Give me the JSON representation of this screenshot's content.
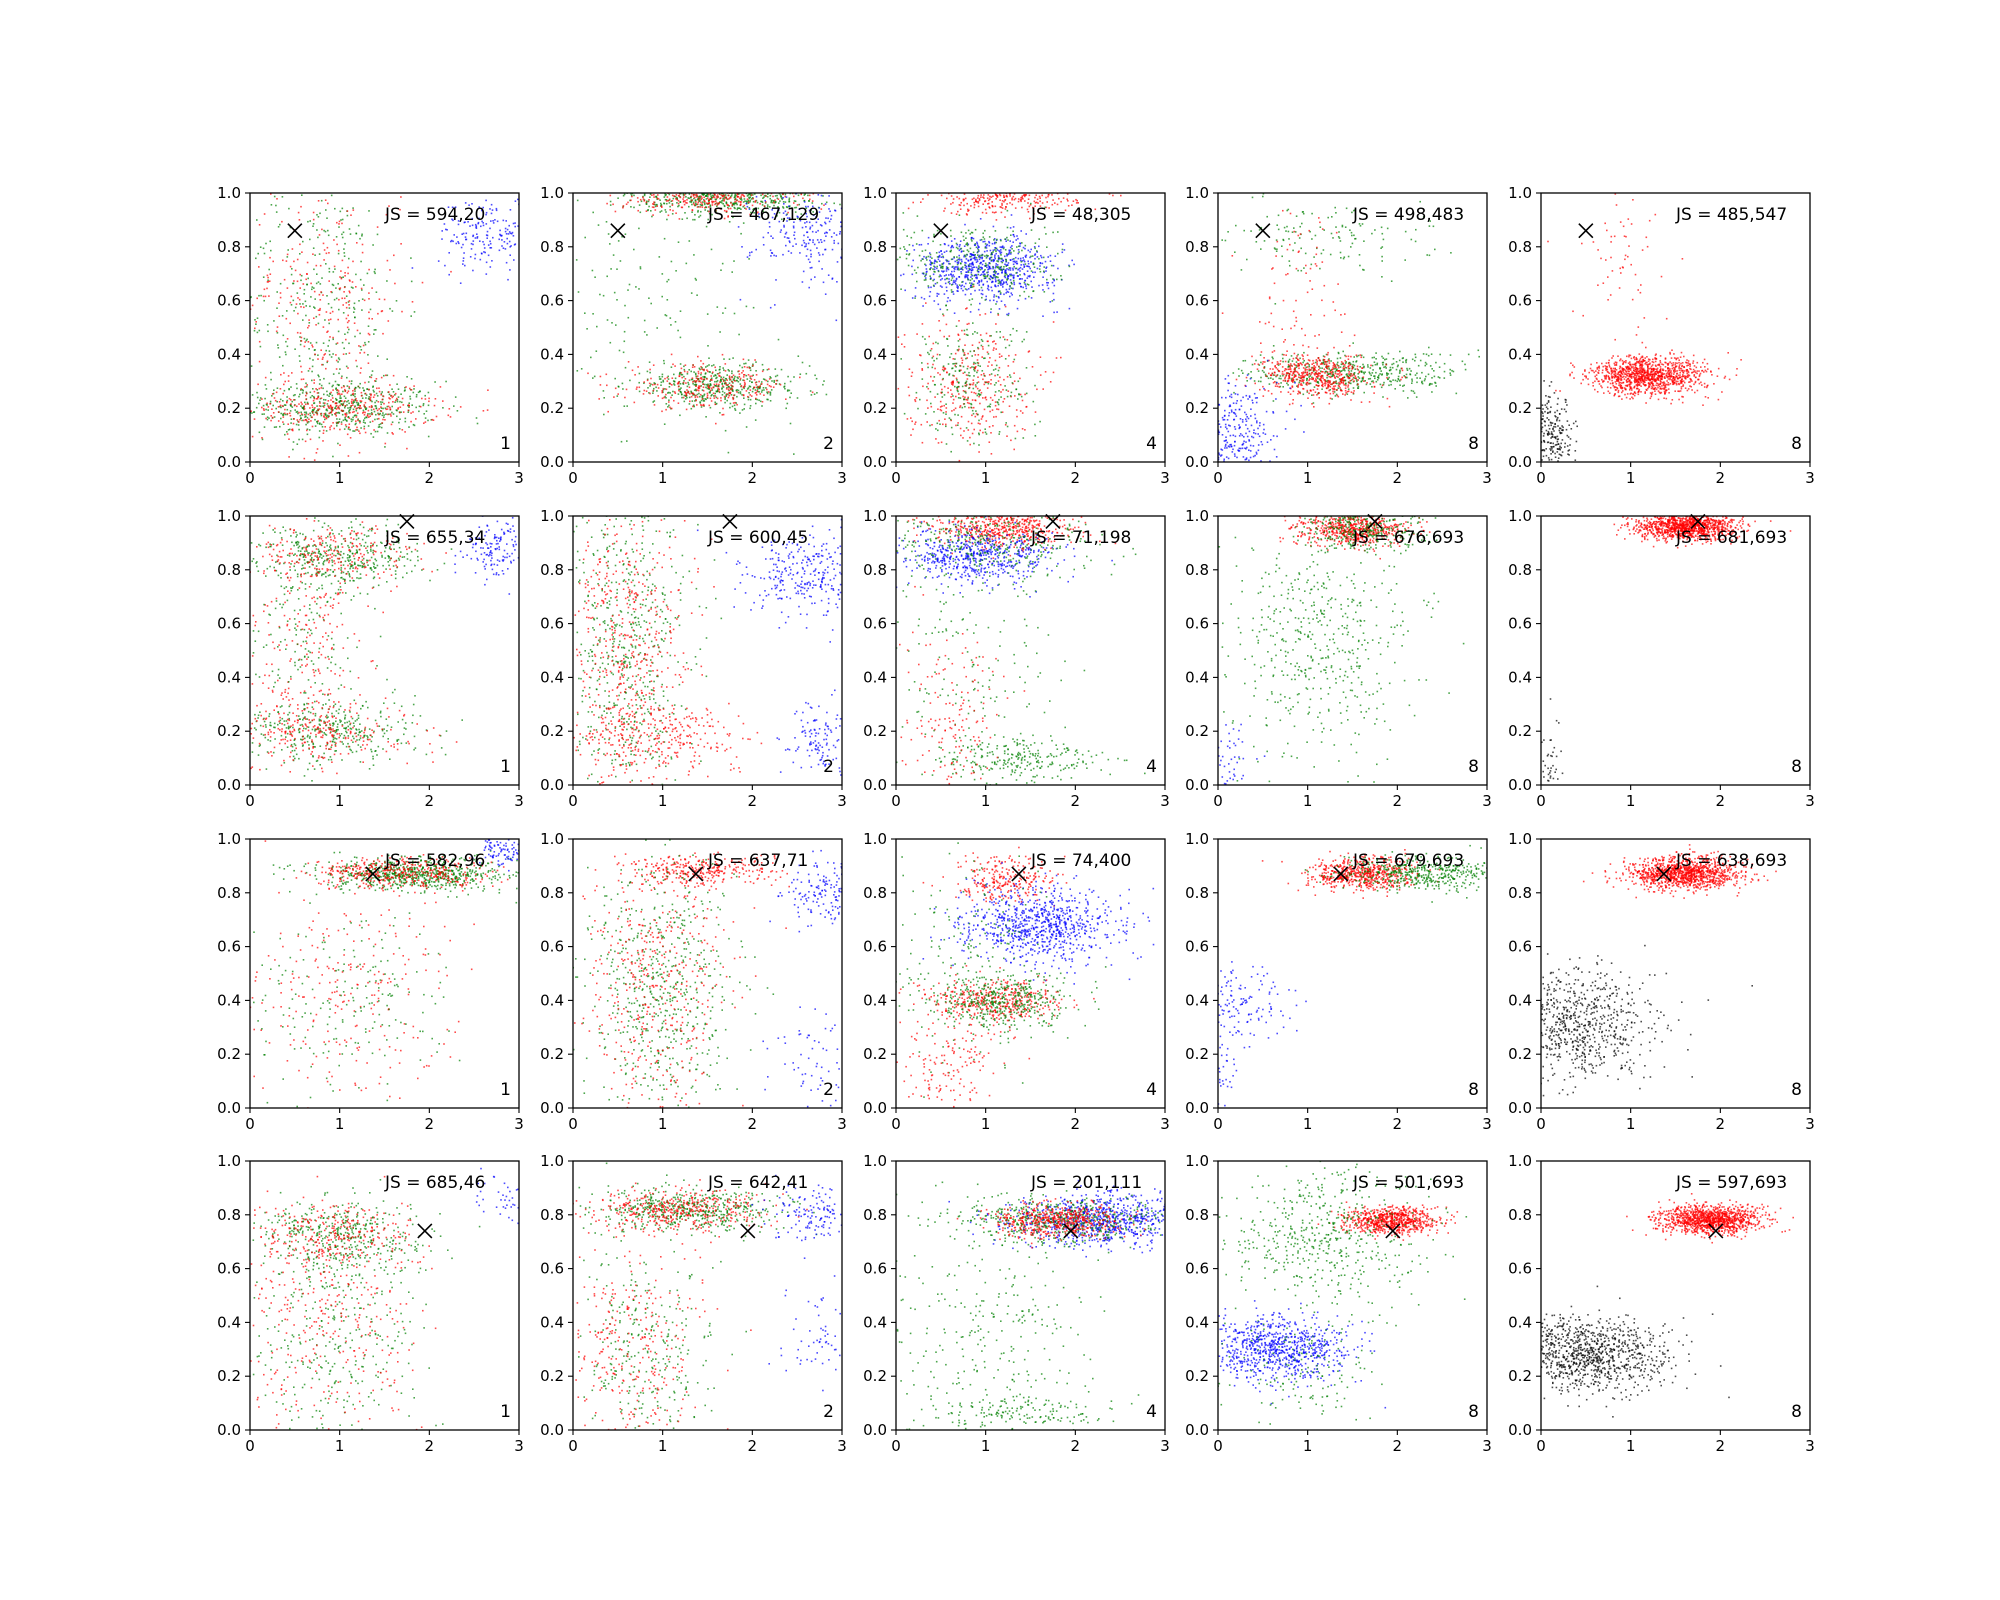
{
  "colors": {
    "red": "#ff0000",
    "green": "#008000",
    "blue": "#0000ff",
    "black": "#000000"
  },
  "chart_data": {
    "type": "scatter",
    "layout": {
      "rows": 4,
      "cols": 5
    },
    "xlim": [
      0,
      3
    ],
    "ylim": [
      0,
      1
    ],
    "xticks": [
      "0",
      "1",
      "2",
      "3"
    ],
    "yticks": [
      "0.0",
      "0.2",
      "0.4",
      "0.6",
      "0.8",
      "1.0"
    ],
    "grid": false,
    "marker_symbol": "x",
    "panels": [
      {
        "js_label": "JS = 594,20",
        "corner_label": "1",
        "marker": {
          "x": 0.5,
          "y": 0.86
        },
        "clusters": [
          {
            "color": "green",
            "cx": 1.0,
            "cy": 0.2,
            "sx": 0.55,
            "sy": 0.05,
            "n": 500
          },
          {
            "color": "red",
            "cx": 1.0,
            "cy": 0.2,
            "sx": 0.55,
            "sy": 0.05,
            "n": 350
          },
          {
            "color": "green",
            "cx": 0.8,
            "cy": 0.6,
            "sx": 0.45,
            "sy": 0.25,
            "n": 350
          },
          {
            "color": "red",
            "cx": 0.8,
            "cy": 0.6,
            "sx": 0.45,
            "sy": 0.25,
            "n": 300
          },
          {
            "color": "blue",
            "cx": 2.7,
            "cy": 0.85,
            "sx": 0.3,
            "sy": 0.07,
            "n": 200
          }
        ]
      },
      {
        "js_label": "JS = 467,129",
        "corner_label": "2",
        "marker": {
          "x": 0.5,
          "y": 0.86
        },
        "clusters": [
          {
            "color": "green",
            "cx": 1.7,
            "cy": 0.98,
            "sx": 0.55,
            "sy": 0.03,
            "n": 500
          },
          {
            "color": "red",
            "cx": 1.5,
            "cy": 0.98,
            "sx": 0.5,
            "sy": 0.03,
            "n": 300
          },
          {
            "color": "green",
            "cx": 1.6,
            "cy": 0.28,
            "sx": 0.5,
            "sy": 0.04,
            "n": 450
          },
          {
            "color": "red",
            "cx": 1.5,
            "cy": 0.28,
            "sx": 0.45,
            "sy": 0.04,
            "n": 300
          },
          {
            "color": "green",
            "cx": 0.9,
            "cy": 0.55,
            "sx": 0.6,
            "sy": 0.25,
            "n": 150
          },
          {
            "color": "blue",
            "cx": 2.7,
            "cy": 0.85,
            "sx": 0.35,
            "sy": 0.1,
            "n": 250
          }
        ]
      },
      {
        "js_label": "JS = 48,305",
        "corner_label": "4",
        "marker": {
          "x": 0.5,
          "y": 0.86
        },
        "clusters": [
          {
            "color": "red",
            "cx": 1.2,
            "cy": 0.98,
            "sx": 0.4,
            "sy": 0.03,
            "n": 300
          },
          {
            "color": "blue",
            "cx": 1.0,
            "cy": 0.72,
            "sx": 0.4,
            "sy": 0.06,
            "n": 700
          },
          {
            "color": "green",
            "cx": 0.9,
            "cy": 0.74,
            "sx": 0.45,
            "sy": 0.08,
            "n": 350
          },
          {
            "color": "red",
            "cx": 0.8,
            "cy": 0.3,
            "sx": 0.35,
            "sy": 0.12,
            "n": 350
          },
          {
            "color": "green",
            "cx": 0.8,
            "cy": 0.3,
            "sx": 0.35,
            "sy": 0.12,
            "n": 250
          }
        ]
      },
      {
        "js_label": "JS = 498,483",
        "corner_label": "8",
        "marker": {
          "x": 0.5,
          "y": 0.86
        },
        "clusters": [
          {
            "color": "green",
            "cx": 1.5,
            "cy": 0.33,
            "sx": 0.6,
            "sy": 0.04,
            "n": 500
          },
          {
            "color": "red",
            "cx": 1.1,
            "cy": 0.32,
            "sx": 0.3,
            "sy": 0.04,
            "n": 500
          },
          {
            "color": "blue",
            "cx": 0.15,
            "cy": 0.1,
            "sx": 0.25,
            "sy": 0.1,
            "n": 350
          },
          {
            "color": "green",
            "cx": 1.2,
            "cy": 0.85,
            "sx": 0.6,
            "sy": 0.08,
            "n": 150
          },
          {
            "color": "red",
            "cx": 0.9,
            "cy": 0.65,
            "sx": 0.3,
            "sy": 0.2,
            "n": 80
          }
        ]
      },
      {
        "js_label": "JS = 485,547",
        "corner_label": "8",
        "marker": {
          "x": 0.5,
          "y": 0.86
        },
        "clusters": [
          {
            "color": "red",
            "cx": 1.2,
            "cy": 0.32,
            "sx": 0.32,
            "sy": 0.035,
            "n": 1100
          },
          {
            "color": "red",
            "cx": 0.9,
            "cy": 0.75,
            "sx": 0.3,
            "sy": 0.15,
            "n": 60
          },
          {
            "color": "black",
            "cx": 0.1,
            "cy": 0.08,
            "sx": 0.15,
            "sy": 0.08,
            "n": 300
          }
        ]
      },
      {
        "js_label": "JS = 655,34",
        "corner_label": "1",
        "marker": {
          "x": 1.75,
          "y": 0.98
        },
        "clusters": [
          {
            "color": "green",
            "cx": 1.0,
            "cy": 0.85,
            "sx": 0.45,
            "sy": 0.06,
            "n": 400
          },
          {
            "color": "red",
            "cx": 0.9,
            "cy": 0.85,
            "sx": 0.45,
            "sy": 0.06,
            "n": 250
          },
          {
            "color": "green",
            "cx": 0.9,
            "cy": 0.2,
            "sx": 0.5,
            "sy": 0.06,
            "n": 350
          },
          {
            "color": "red",
            "cx": 0.8,
            "cy": 0.2,
            "sx": 0.5,
            "sy": 0.06,
            "n": 250
          },
          {
            "color": "red",
            "cx": 0.6,
            "cy": 0.5,
            "sx": 0.35,
            "sy": 0.2,
            "n": 200
          },
          {
            "color": "green",
            "cx": 0.6,
            "cy": 0.5,
            "sx": 0.35,
            "sy": 0.2,
            "n": 150
          },
          {
            "color": "blue",
            "cx": 2.8,
            "cy": 0.88,
            "sx": 0.2,
            "sy": 0.05,
            "n": 150
          }
        ]
      },
      {
        "js_label": "JS = 600,45",
        "corner_label": "2",
        "marker": {
          "x": 1.75,
          "y": 0.98
        },
        "clusters": [
          {
            "color": "green",
            "cx": 0.6,
            "cy": 0.5,
            "sx": 0.35,
            "sy": 0.3,
            "n": 600
          },
          {
            "color": "red",
            "cx": 0.6,
            "cy": 0.5,
            "sx": 0.35,
            "sy": 0.3,
            "n": 550
          },
          {
            "color": "red",
            "cx": 1.0,
            "cy": 0.18,
            "sx": 0.5,
            "sy": 0.06,
            "n": 250
          },
          {
            "color": "blue",
            "cx": 2.6,
            "cy": 0.78,
            "sx": 0.35,
            "sy": 0.08,
            "n": 300
          },
          {
            "color": "blue",
            "cx": 2.8,
            "cy": 0.15,
            "sx": 0.25,
            "sy": 0.08,
            "n": 150
          }
        ]
      },
      {
        "js_label": "JS = 71,198",
        "corner_label": "4",
        "marker": {
          "x": 1.75,
          "y": 0.98
        },
        "clusters": [
          {
            "color": "red",
            "cx": 1.2,
            "cy": 0.95,
            "sx": 0.4,
            "sy": 0.035,
            "n": 500
          },
          {
            "color": "blue",
            "cx": 0.9,
            "cy": 0.85,
            "sx": 0.45,
            "sy": 0.05,
            "n": 550
          },
          {
            "color": "green",
            "cx": 1.1,
            "cy": 0.9,
            "sx": 0.6,
            "sy": 0.06,
            "n": 300
          },
          {
            "color": "green",
            "cx": 1.4,
            "cy": 0.1,
            "sx": 0.5,
            "sy": 0.04,
            "n": 250
          },
          {
            "color": "green",
            "cx": 0.8,
            "cy": 0.5,
            "sx": 0.5,
            "sy": 0.25,
            "n": 200
          },
          {
            "color": "red",
            "cx": 0.6,
            "cy": 0.25,
            "sx": 0.3,
            "sy": 0.15,
            "n": 150
          }
        ]
      },
      {
        "js_label": "JS = 676,693",
        "corner_label": "8",
        "marker": {
          "x": 1.75,
          "y": 0.98
        },
        "clusters": [
          {
            "color": "red",
            "cx": 1.5,
            "cy": 0.95,
            "sx": 0.3,
            "sy": 0.03,
            "n": 600
          },
          {
            "color": "green",
            "cx": 1.6,
            "cy": 0.95,
            "sx": 0.35,
            "sy": 0.04,
            "n": 300
          },
          {
            "color": "green",
            "cx": 1.2,
            "cy": 0.55,
            "sx": 0.55,
            "sy": 0.22,
            "n": 500
          },
          {
            "color": "blue",
            "cx": 0.1,
            "cy": 0.1,
            "sx": 0.15,
            "sy": 0.06,
            "n": 60
          }
        ]
      },
      {
        "js_label": "JS = 681,693",
        "corner_label": "8",
        "marker": {
          "x": 1.75,
          "y": 0.98
        },
        "clusters": [
          {
            "color": "red",
            "cx": 1.6,
            "cy": 0.96,
            "sx": 0.28,
            "sy": 0.025,
            "n": 1100
          },
          {
            "color": "black",
            "cx": 0.08,
            "cy": 0.1,
            "sx": 0.1,
            "sy": 0.08,
            "n": 50
          }
        ]
      },
      {
        "js_label": "JS = 582,96",
        "corner_label": "1",
        "marker": {
          "x": 1.37,
          "y": 0.87
        },
        "clusters": [
          {
            "color": "green",
            "cx": 1.8,
            "cy": 0.87,
            "sx": 0.5,
            "sy": 0.03,
            "n": 700
          },
          {
            "color": "red",
            "cx": 1.7,
            "cy": 0.87,
            "sx": 0.5,
            "sy": 0.03,
            "n": 400
          },
          {
            "color": "red",
            "cx": 1.0,
            "cy": 0.4,
            "sx": 0.6,
            "sy": 0.2,
            "n": 250
          },
          {
            "color": "green",
            "cx": 1.0,
            "cy": 0.4,
            "sx": 0.6,
            "sy": 0.2,
            "n": 200
          },
          {
            "color": "blue",
            "cx": 2.85,
            "cy": 0.95,
            "sx": 0.15,
            "sy": 0.03,
            "n": 100
          }
        ]
      },
      {
        "js_label": "JS = 637,71",
        "corner_label": "2",
        "marker": {
          "x": 1.37,
          "y": 0.87
        },
        "clusters": [
          {
            "color": "red",
            "cx": 1.4,
            "cy": 0.88,
            "sx": 0.4,
            "sy": 0.03,
            "n": 300
          },
          {
            "color": "green",
            "cx": 1.0,
            "cy": 0.45,
            "sx": 0.4,
            "sy": 0.25,
            "n": 600
          },
          {
            "color": "red",
            "cx": 0.9,
            "cy": 0.45,
            "sx": 0.4,
            "sy": 0.25,
            "n": 450
          },
          {
            "color": "blue",
            "cx": 2.8,
            "cy": 0.8,
            "sx": 0.2,
            "sy": 0.06,
            "n": 150
          },
          {
            "color": "blue",
            "cx": 2.7,
            "cy": 0.2,
            "sx": 0.25,
            "sy": 0.1,
            "n": 60
          }
        ]
      },
      {
        "js_label": "JS = 74,400",
        "corner_label": "4",
        "marker": {
          "x": 1.37,
          "y": 0.87
        },
        "clusters": [
          {
            "color": "red",
            "cx": 1.2,
            "cy": 0.85,
            "sx": 0.3,
            "sy": 0.04,
            "n": 250
          },
          {
            "color": "blue",
            "cx": 1.6,
            "cy": 0.68,
            "sx": 0.45,
            "sy": 0.07,
            "n": 800
          },
          {
            "color": "red",
            "cx": 1.1,
            "cy": 0.4,
            "sx": 0.35,
            "sy": 0.04,
            "n": 400
          },
          {
            "color": "green",
            "cx": 1.2,
            "cy": 0.4,
            "sx": 0.4,
            "sy": 0.05,
            "n": 400
          },
          {
            "color": "green",
            "cx": 0.8,
            "cy": 0.6,
            "sx": 0.5,
            "sy": 0.25,
            "n": 200
          },
          {
            "color": "red",
            "cx": 0.6,
            "cy": 0.15,
            "sx": 0.3,
            "sy": 0.1,
            "n": 150
          }
        ]
      },
      {
        "js_label": "JS = 679,693",
        "corner_label": "8",
        "marker": {
          "x": 1.37,
          "y": 0.87
        },
        "clusters": [
          {
            "color": "red",
            "cx": 1.6,
            "cy": 0.87,
            "sx": 0.3,
            "sy": 0.03,
            "n": 600
          },
          {
            "color": "green",
            "cx": 2.3,
            "cy": 0.87,
            "sx": 0.45,
            "sy": 0.03,
            "n": 450
          },
          {
            "color": "blue",
            "cx": 0.2,
            "cy": 0.38,
            "sx": 0.3,
            "sy": 0.08,
            "n": 150
          },
          {
            "color": "blue",
            "cx": 0.1,
            "cy": 0.15,
            "sx": 0.1,
            "sy": 0.08,
            "n": 30
          }
        ]
      },
      {
        "js_label": "JS = 638,693",
        "corner_label": "8",
        "marker": {
          "x": 1.37,
          "y": 0.87
        },
        "clusters": [
          {
            "color": "red",
            "cx": 1.6,
            "cy": 0.87,
            "sx": 0.3,
            "sy": 0.03,
            "n": 1100
          },
          {
            "color": "black",
            "cx": 0.4,
            "cy": 0.3,
            "sx": 0.45,
            "sy": 0.1,
            "n": 800
          }
        ]
      },
      {
        "js_label": "JS = 685,46",
        "corner_label": "1",
        "marker": {
          "x": 1.95,
          "y": 0.74
        },
        "clusters": [
          {
            "color": "green",
            "cx": 1.0,
            "cy": 0.72,
            "sx": 0.5,
            "sy": 0.07,
            "n": 400
          },
          {
            "color": "red",
            "cx": 0.9,
            "cy": 0.72,
            "sx": 0.5,
            "sy": 0.07,
            "n": 300
          },
          {
            "color": "green",
            "cx": 0.9,
            "cy": 0.35,
            "sx": 0.55,
            "sy": 0.22,
            "n": 350
          },
          {
            "color": "red",
            "cx": 0.8,
            "cy": 0.35,
            "sx": 0.55,
            "sy": 0.22,
            "n": 300
          },
          {
            "color": "blue",
            "cx": 2.8,
            "cy": 0.85,
            "sx": 0.2,
            "sy": 0.05,
            "n": 40
          }
        ]
      },
      {
        "js_label": "JS = 642,41",
        "corner_label": "2",
        "marker": {
          "x": 1.95,
          "y": 0.74
        },
        "clusters": [
          {
            "color": "green",
            "cx": 1.3,
            "cy": 0.82,
            "sx": 0.5,
            "sy": 0.04,
            "n": 500
          },
          {
            "color": "red",
            "cx": 1.2,
            "cy": 0.82,
            "sx": 0.5,
            "sy": 0.04,
            "n": 400
          },
          {
            "color": "green",
            "cx": 0.8,
            "cy": 0.3,
            "sx": 0.4,
            "sy": 0.2,
            "n": 300
          },
          {
            "color": "red",
            "cx": 0.7,
            "cy": 0.3,
            "sx": 0.4,
            "sy": 0.2,
            "n": 300
          },
          {
            "color": "blue",
            "cx": 2.7,
            "cy": 0.8,
            "sx": 0.3,
            "sy": 0.05,
            "n": 150
          },
          {
            "color": "blue",
            "cx": 2.7,
            "cy": 0.35,
            "sx": 0.2,
            "sy": 0.1,
            "n": 60
          }
        ]
      },
      {
        "js_label": "JS = 201,111",
        "corner_label": "4",
        "marker": {
          "x": 1.95,
          "y": 0.74
        },
        "clusters": [
          {
            "color": "blue",
            "cx": 2.3,
            "cy": 0.78,
            "sx": 0.5,
            "sy": 0.05,
            "n": 800
          },
          {
            "color": "green",
            "cx": 1.8,
            "cy": 0.78,
            "sx": 0.55,
            "sy": 0.04,
            "n": 500
          },
          {
            "color": "red",
            "cx": 1.8,
            "cy": 0.78,
            "sx": 0.35,
            "sy": 0.03,
            "n": 500
          },
          {
            "color": "green",
            "cx": 1.0,
            "cy": 0.4,
            "sx": 0.6,
            "sy": 0.25,
            "n": 300
          },
          {
            "color": "green",
            "cx": 1.4,
            "cy": 0.07,
            "sx": 0.5,
            "sy": 0.03,
            "n": 150
          }
        ]
      },
      {
        "js_label": "JS = 501,693",
        "corner_label": "8",
        "marker": {
          "x": 1.95,
          "y": 0.74
        },
        "clusters": [
          {
            "color": "red",
            "cx": 1.95,
            "cy": 0.78,
            "sx": 0.25,
            "sy": 0.025,
            "n": 700
          },
          {
            "color": "green",
            "cx": 1.2,
            "cy": 0.72,
            "sx": 0.55,
            "sy": 0.12,
            "n": 500
          },
          {
            "color": "blue",
            "cx": 0.65,
            "cy": 0.3,
            "sx": 0.4,
            "sy": 0.06,
            "n": 800
          },
          {
            "color": "green",
            "cx": 1.0,
            "cy": 0.2,
            "sx": 0.5,
            "sy": 0.12,
            "n": 150
          }
        ]
      },
      {
        "js_label": "JS = 597,693",
        "corner_label": "8",
        "marker": {
          "x": 1.95,
          "y": 0.74
        },
        "clusters": [
          {
            "color": "red",
            "cx": 1.9,
            "cy": 0.78,
            "sx": 0.28,
            "sy": 0.025,
            "n": 1100
          },
          {
            "color": "black",
            "cx": 0.5,
            "cy": 0.28,
            "sx": 0.45,
            "sy": 0.07,
            "n": 1000
          }
        ]
      }
    ]
  }
}
